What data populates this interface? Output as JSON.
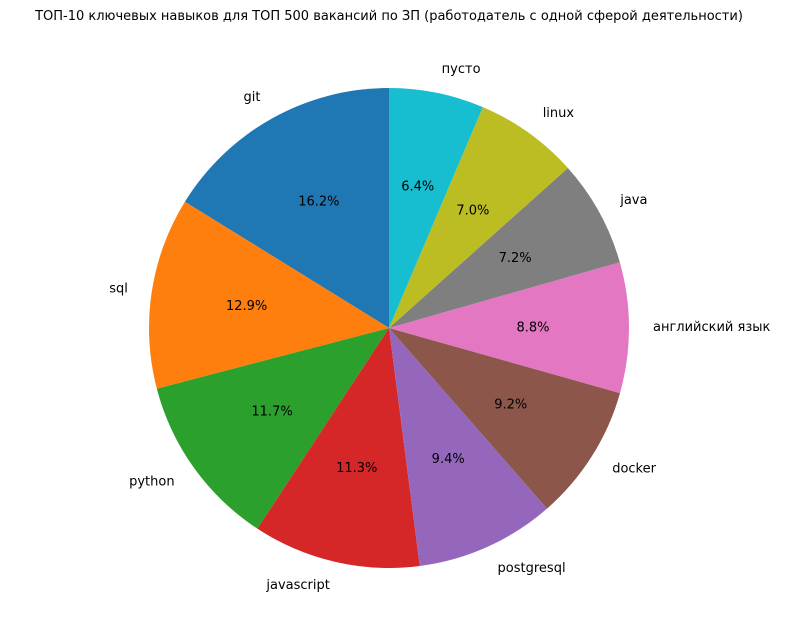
{
  "chart_data": {
    "type": "pie",
    "title": "ТОП-10 ключевых навыков для ТОП 500 вакансий по ЗП (работодатель с одной сферой деятельности)",
    "categories": [
      "git",
      "sql",
      "python",
      "javascript",
      "postgresql",
      "docker",
      "английский язык",
      "java",
      "linux",
      "пусто"
    ],
    "values": [
      16.2,
      12.9,
      11.7,
      11.3,
      9.4,
      9.2,
      8.8,
      7.2,
      7.0,
      6.4
    ],
    "value_labels": [
      "16.2%",
      "12.9%",
      "11.7%",
      "11.3%",
      "9.4%",
      "9.2%",
      "8.8%",
      "7.2%",
      "7.0%",
      "6.4%"
    ],
    "colors": [
      "#1f77b4",
      "#ff7f0e",
      "#2ca02c",
      "#d62728",
      "#9467bd",
      "#8c564b",
      "#e377c2",
      "#7f7f7f",
      "#bcbd22",
      "#17becf"
    ],
    "start_angle_deg": 90,
    "direction": "counterclockwise",
    "legend": "none"
  }
}
